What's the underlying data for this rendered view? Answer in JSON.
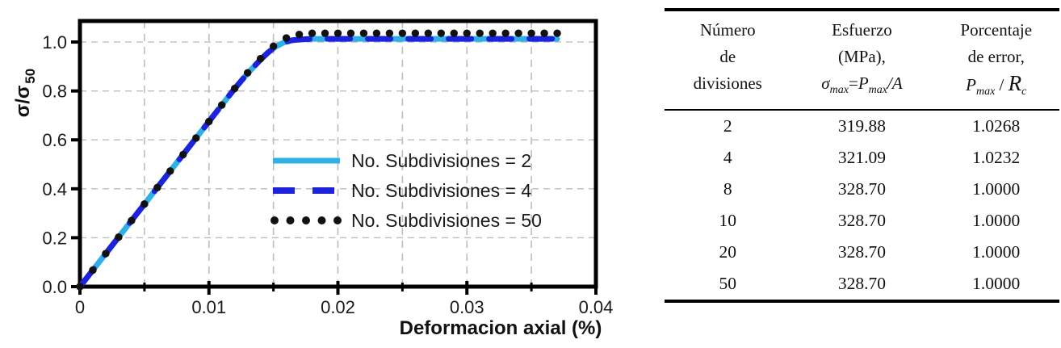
{
  "chart": {
    "y_axis_title_main": "σ/σ",
    "y_axis_title_sub": "50",
    "x_axis_title": "Deformacion axial (%)",
    "legend": [
      {
        "label": "No. Subdivisiones = 2",
        "color": "#2fb0e6",
        "style": "solid"
      },
      {
        "label": "No. Subdivisiones = 4",
        "color": "#1d22dd",
        "style": "dashed"
      },
      {
        "label": "No. Subdivisiones = 50",
        "color": "#111111",
        "style": "dots"
      }
    ]
  },
  "chart_data": {
    "type": "line",
    "title": "",
    "xlabel": "Deformacion axial (%)",
    "ylabel": "σ/σ50",
    "xlim": [
      0,
      0.04
    ],
    "ylim": [
      0,
      1.086
    ],
    "grid": true,
    "legend_position": "inside lower-right",
    "x_tick_values": [
      0,
      0.01,
      0.02,
      0.03,
      0.04
    ],
    "x_tick_labels": [
      "0",
      "0.01",
      "0.02",
      "0.03",
      "0.04"
    ],
    "x_minor_ticks": [
      0.005,
      0.015,
      0.025,
      0.035
    ],
    "y_tick_values": [
      0,
      0.2,
      0.4,
      0.6,
      0.8,
      1.0
    ],
    "y_tick_labels": [
      "0.0",
      "0.2",
      "0.4",
      "0.6",
      "0.8",
      "1.0"
    ],
    "grid_x": [
      0.005,
      0.01,
      0.015,
      0.02,
      0.025,
      0.03,
      0.035
    ],
    "grid_y": [
      0.2,
      0.4,
      0.6,
      0.8,
      1.0
    ],
    "grid_color": "#bdbdbd",
    "series": [
      {
        "name": "No. Subdivisiones = 2",
        "color": "#2fb0e6",
        "style": "solid",
        "width": 7,
        "x": [
          0,
          0.002,
          0.004,
          0.006,
          0.008,
          0.01,
          0.012,
          0.013,
          0.014,
          0.0146,
          0.0152,
          0.0158,
          0.0164,
          0.0172,
          0.018,
          0.037
        ],
        "y": [
          0,
          0.135,
          0.27,
          0.405,
          0.54,
          0.675,
          0.81,
          0.872,
          0.928,
          0.958,
          0.982,
          0.998,
          1.007,
          1.011,
          1.013,
          1.013
        ]
      },
      {
        "name": "No. Subdivisiones = 4",
        "color": "#1d22dd",
        "style": "dashed",
        "width": 7,
        "dash": [
          28,
          22
        ],
        "x": [
          0,
          0.002,
          0.004,
          0.006,
          0.008,
          0.01,
          0.012,
          0.013,
          0.014,
          0.0146,
          0.0152,
          0.0158,
          0.0164,
          0.0172,
          0.018,
          0.037
        ],
        "y": [
          0,
          0.135,
          0.27,
          0.405,
          0.54,
          0.675,
          0.81,
          0.872,
          0.928,
          0.958,
          0.982,
          0.998,
          1.007,
          1.011,
          1.013,
          1.013
        ]
      },
      {
        "name": "No. Subdivisiones = 50",
        "color": "#111111",
        "style": "dots",
        "marker_step": 0.001,
        "marker_r": 4.7,
        "x": [
          0,
          0.002,
          0.004,
          0.006,
          0.008,
          0.01,
          0.012,
          0.013,
          0.014,
          0.0146,
          0.0152,
          0.0158,
          0.0164,
          0.0172,
          0.018,
          0.037
        ],
        "y": [
          0,
          0.135,
          0.27,
          0.405,
          0.54,
          0.675,
          0.81,
          0.874,
          0.932,
          0.964,
          0.992,
          1.012,
          1.025,
          1.033,
          1.036,
          1.036
        ]
      }
    ]
  },
  "table": {
    "headers": {
      "col1": [
        "Número",
        "de",
        "divisiones"
      ],
      "col2": [
        "Esfuerzo",
        "(MPa),"
      ],
      "col3": [
        "Porcentaje",
        "de error,"
      ]
    },
    "formula_esfuerzo": {
      "sigma": "σ",
      "sub1": "max",
      "equals": "=",
      "p": "P",
      "sub2": "max",
      "rest": "/A"
    },
    "formula_error": {
      "p": "P",
      "sub": "max",
      "slash": " / ",
      "r": "R",
      "rsub": "c"
    },
    "rows": [
      [
        "2",
        "319.88",
        "1.0268"
      ],
      [
        "4",
        "321.09",
        "1.0232"
      ],
      [
        "8",
        "328.70",
        "1.0000"
      ],
      [
        "10",
        "328.70",
        "1.0000"
      ],
      [
        "20",
        "328.70",
        "1.0000"
      ],
      [
        "50",
        "328.70",
        "1.0000"
      ]
    ]
  }
}
